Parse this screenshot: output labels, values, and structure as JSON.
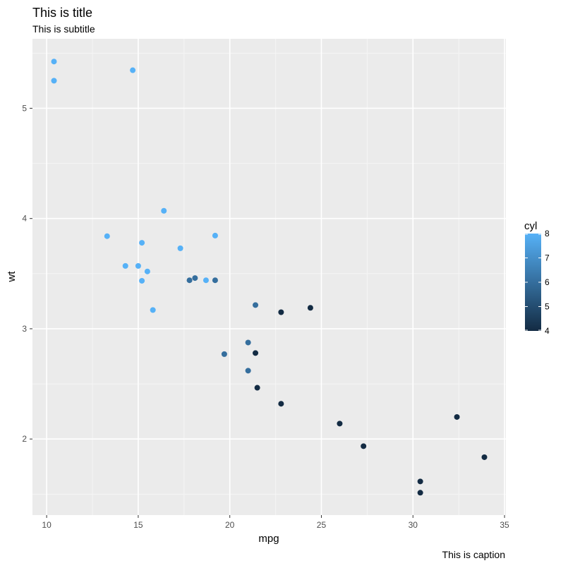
{
  "chart_data": {
    "type": "scatter",
    "title": "This is title",
    "subtitle": "This is subtitle",
    "caption": "This is caption",
    "xlabel": "mpg",
    "ylabel": "wt",
    "xlim": [
      9.225,
      35.075
    ],
    "ylim": [
      1.31,
      5.63
    ],
    "x_ticks": [
      10,
      15,
      20,
      25,
      30,
      35
    ],
    "y_ticks": [
      2,
      3,
      4,
      5
    ],
    "grid": true,
    "legend": {
      "title": "cyl",
      "position": "right",
      "type": "colorbar",
      "ticks": [
        4,
        5,
        6,
        7,
        8
      ],
      "range": [
        4,
        8
      ],
      "color_low": "#132B43",
      "color_high": "#56B1F7"
    },
    "colors": {
      "panel_background": "#EBEBEB",
      "grid_major": "#FFFFFF",
      "grid_minor": "#F5F5F5"
    },
    "points": [
      {
        "x": 21.0,
        "y": 2.62,
        "cyl": 6
      },
      {
        "x": 21.0,
        "y": 2.875,
        "cyl": 6
      },
      {
        "x": 22.8,
        "y": 2.32,
        "cyl": 4
      },
      {
        "x": 21.4,
        "y": 3.215,
        "cyl": 6
      },
      {
        "x": 18.7,
        "y": 3.44,
        "cyl": 8
      },
      {
        "x": 18.1,
        "y": 3.46,
        "cyl": 6
      },
      {
        "x": 14.3,
        "y": 3.57,
        "cyl": 8
      },
      {
        "x": 24.4,
        "y": 3.19,
        "cyl": 4
      },
      {
        "x": 22.8,
        "y": 3.15,
        "cyl": 4
      },
      {
        "x": 19.2,
        "y": 3.44,
        "cyl": 6
      },
      {
        "x": 17.8,
        "y": 3.44,
        "cyl": 6
      },
      {
        "x": 16.4,
        "y": 4.07,
        "cyl": 8
      },
      {
        "x": 17.3,
        "y": 3.73,
        "cyl": 8
      },
      {
        "x": 15.2,
        "y": 3.78,
        "cyl": 8
      },
      {
        "x": 10.4,
        "y": 5.25,
        "cyl": 8
      },
      {
        "x": 10.4,
        "y": 5.424,
        "cyl": 8
      },
      {
        "x": 14.7,
        "y": 5.345,
        "cyl": 8
      },
      {
        "x": 32.4,
        "y": 2.2,
        "cyl": 4
      },
      {
        "x": 30.4,
        "y": 1.615,
        "cyl": 4
      },
      {
        "x": 33.9,
        "y": 1.835,
        "cyl": 4
      },
      {
        "x": 21.5,
        "y": 2.465,
        "cyl": 4
      },
      {
        "x": 15.5,
        "y": 3.52,
        "cyl": 8
      },
      {
        "x": 15.2,
        "y": 3.435,
        "cyl": 8
      },
      {
        "x": 13.3,
        "y": 3.84,
        "cyl": 8
      },
      {
        "x": 19.2,
        "y": 3.845,
        "cyl": 8
      },
      {
        "x": 27.3,
        "y": 1.935,
        "cyl": 4
      },
      {
        "x": 26.0,
        "y": 2.14,
        "cyl": 4
      },
      {
        "x": 30.4,
        "y": 1.513,
        "cyl": 4
      },
      {
        "x": 15.8,
        "y": 3.17,
        "cyl": 8
      },
      {
        "x": 19.7,
        "y": 2.77,
        "cyl": 6
      },
      {
        "x": 15.0,
        "y": 3.57,
        "cyl": 8
      },
      {
        "x": 21.4,
        "y": 2.78,
        "cyl": 4
      }
    ]
  }
}
